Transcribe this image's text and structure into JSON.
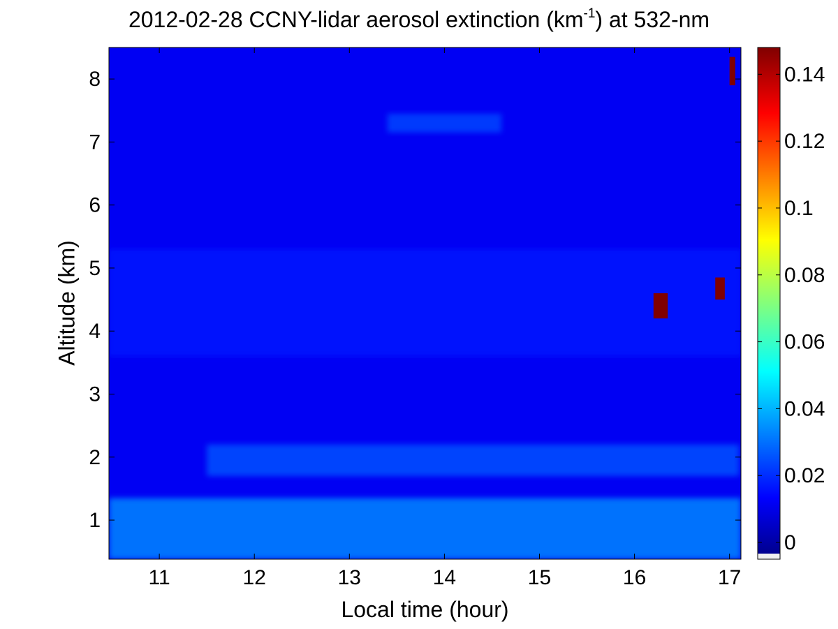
{
  "chart_data": {
    "type": "heatmap",
    "title": {
      "prefix": "2012-02-28 CCNY-lidar aerosol extinction (km",
      "superscript": "-1",
      "suffix": ") at 532-nm"
    },
    "xlabel": "Local time (hour)",
    "ylabel": "Altitude (km)",
    "xlim": [
      10.47,
      17.12
    ],
    "ylim": [
      0.38,
      8.5
    ],
    "x_ticks": [
      11,
      12,
      13,
      14,
      15,
      16,
      17
    ],
    "y_ticks": [
      1,
      2,
      3,
      4,
      5,
      6,
      7,
      8
    ],
    "colorbar": {
      "range": [
        -0.005,
        0.148
      ],
      "ticks": [
        0,
        0.02,
        0.04,
        0.06,
        0.08,
        0.1,
        0.12,
        0.14
      ],
      "tick_labels": [
        "0",
        "0.02",
        "0.04",
        "0.06",
        "0.08",
        "0.1",
        "0.12",
        "0.14"
      ],
      "colormap": "jet",
      "colors": [
        "#00008f",
        "#0000ff",
        "#00ffff",
        "#ffff00",
        "#ff0000",
        "#800000"
      ],
      "below_range_color": "#f0f0f0"
    },
    "background_extinction": 0.01,
    "layers": [
      {
        "feature": "boundary-layer aerosol",
        "x": [
          10.47,
          17.12
        ],
        "altitude_km": [
          0.38,
          1.35
        ],
        "extinction": 0.032
      },
      {
        "feature": "residual layer",
        "x": [
          11.5,
          17.1
        ],
        "altitude_km": [
          1.7,
          2.2
        ],
        "extinction": 0.024
      },
      {
        "feature": "elevated aerosol layer",
        "x": [
          10.47,
          17.12
        ],
        "altitude_km": [
          3.6,
          5.3
        ],
        "extinction": 0.015
      },
      {
        "feature": "upper thin layer",
        "x": [
          13.4,
          14.6
        ],
        "altitude_km": [
          7.15,
          7.45
        ],
        "extinction": 0.022
      },
      {
        "feature": "cloud",
        "x": [
          16.2,
          16.35
        ],
        "altitude_km": [
          4.2,
          4.6
        ],
        "extinction": 0.15
      },
      {
        "feature": "cloud",
        "x": [
          16.85,
          16.95
        ],
        "altitude_km": [
          4.5,
          4.85
        ],
        "extinction": 0.15
      },
      {
        "feature": "cloud",
        "x": [
          17.0,
          17.06
        ],
        "altitude_km": [
          7.9,
          8.35
        ],
        "extinction": 0.15
      }
    ]
  }
}
